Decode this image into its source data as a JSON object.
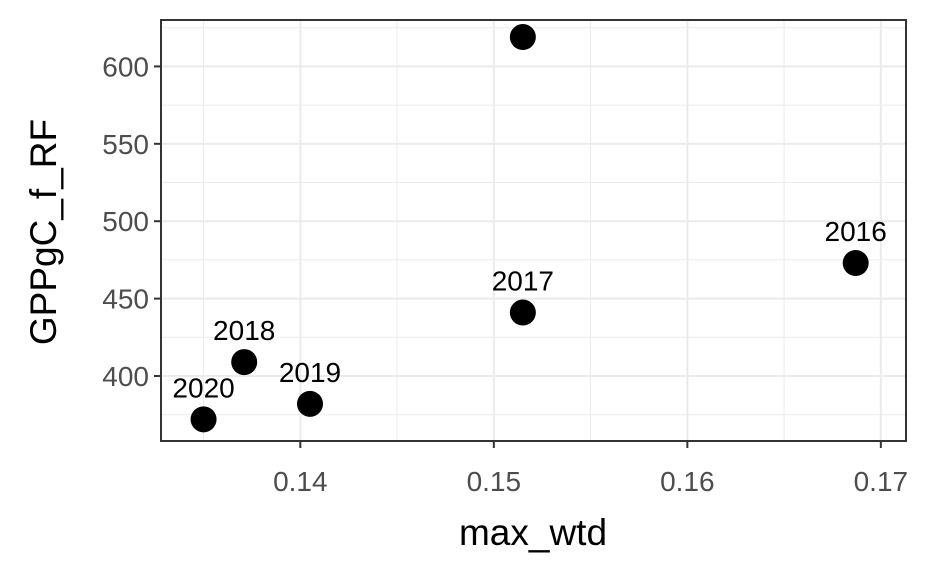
{
  "chart_data": {
    "type": "scatter",
    "title": "",
    "xlabel": "max_wtd",
    "ylabel": "GPPgC_f_RF",
    "xlim": [
      0.1328,
      0.1713
    ],
    "ylim": [
      358,
      630
    ],
    "x_ticks": [
      0.14,
      0.15,
      0.16,
      0.17
    ],
    "x_tick_labels": [
      "0.14",
      "0.15",
      "0.16",
      "0.17"
    ],
    "y_ticks": [
      400,
      450,
      500,
      550,
      600
    ],
    "y_tick_labels": [
      "400",
      "450",
      "500",
      "550",
      "600"
    ],
    "grid": true,
    "legend": "none",
    "points": [
      {
        "x": 0.135,
        "y": 372,
        "label": "2020"
      },
      {
        "x": 0.1371,
        "y": 409,
        "label": "2018"
      },
      {
        "x": 0.1405,
        "y": 382,
        "label": "2019"
      },
      {
        "x": 0.1515,
        "y": 441,
        "label": "2017"
      },
      {
        "x": 0.1515,
        "y": 619,
        "label": ""
      },
      {
        "x": 0.1687,
        "y": 473,
        "label": "2016"
      }
    ],
    "colors": {
      "point": "#000000",
      "grid": "#ebebeb",
      "panel_border": "#333333",
      "tick_text": "#4d4d4d"
    }
  }
}
